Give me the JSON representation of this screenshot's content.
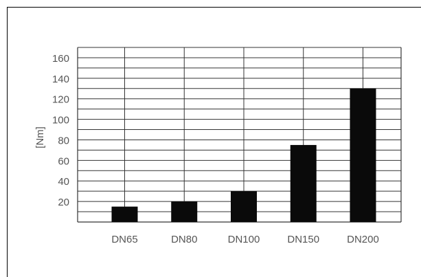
{
  "chart_data": {
    "type": "bar",
    "title": "",
    "xlabel": "",
    "ylabel": "[Nm]",
    "categories": [
      "DN65",
      "DN80",
      "DN100",
      "DN150",
      "DN200"
    ],
    "values": [
      15,
      20,
      30,
      75,
      130
    ],
    "ylim": [
      0,
      170
    ],
    "yticks": [
      20,
      40,
      60,
      80,
      100,
      120,
      140,
      160
    ],
    "grid": true,
    "legend": "none",
    "bar_color": "#0a0a0a",
    "grid_color": "#333333"
  }
}
